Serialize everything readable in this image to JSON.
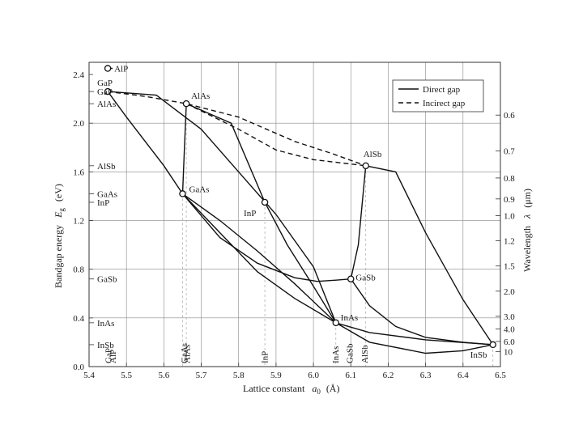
{
  "chart_data": {
    "type": "line",
    "xlabel": "Lattice constant",
    "xlabel_symbol": "a",
    "xlabel_sub": "0",
    "xlabel_unit": "(Å)",
    "ylabel": "Bandgap energy",
    "ylabel_symbol": "E",
    "ylabel_sub": "g",
    "ylabel_unit": "(eV)",
    "y2label": "Wavelength",
    "y2label_symbol": "λ",
    "y2label_unit": "(μm)",
    "xlim": [
      5.4,
      6.5
    ],
    "ylim": [
      0.0,
      2.5
    ],
    "x_ticks": [
      "5.4",
      "5.5",
      "5.6",
      "5.7",
      "5.8",
      "5.9",
      "6.0",
      "6.1",
      "6.2",
      "6.3",
      "6.4",
      "6.5"
    ],
    "y_ticks": [
      "0.0",
      "0.4",
      "0.8",
      "1.2",
      "1.6",
      "2.0",
      "2.4"
    ],
    "wavelength_ticks": [
      "0.6",
      "0.7",
      "0.8",
      "0.9",
      "1.0",
      "1.2",
      "1.5",
      "2.0",
      "3.0",
      "4.0",
      "6.0",
      "10"
    ],
    "legend": {
      "position": "top-right",
      "direct": "Direct gap",
      "indirect": "Incirect gap"
    },
    "compounds": [
      {
        "name": "AlP",
        "a": 5.45,
        "eg": 2.45
      },
      {
        "name": "GaP",
        "a": 5.45,
        "eg": 2.26
      },
      {
        "name": "AlAs",
        "a": 5.66,
        "eg": 2.16
      },
      {
        "name": "AlSb",
        "a": 6.14,
        "eg": 1.65
      },
      {
        "name": "GaAs",
        "a": 5.65,
        "eg": 1.42
      },
      {
        "name": "InP",
        "a": 5.87,
        "eg": 1.35
      },
      {
        "name": "GaSb",
        "a": 6.1,
        "eg": 0.72
      },
      {
        "name": "InAs",
        "a": 6.06,
        "eg": 0.36
      },
      {
        "name": "InSb",
        "a": 6.48,
        "eg": 0.18
      }
    ],
    "left_axis_labels": [
      {
        "name": "GaP",
        "eg": 2.26
      },
      {
        "name": "AlAs",
        "eg": 2.16
      },
      {
        "name": "AlSb",
        "eg": 1.65
      },
      {
        "name": "GaAs",
        "eg": 1.42
      },
      {
        "name": "InP",
        "eg": 1.35
      },
      {
        "name": "GaSb",
        "eg": 0.72
      },
      {
        "name": "InAs",
        "eg": 0.36
      },
      {
        "name": "InSb",
        "eg": 0.18
      }
    ],
    "bottom_axis_labels": [
      {
        "name": "GaP",
        "a": 5.451
      },
      {
        "name": "AlP",
        "a": 5.463
      },
      {
        "name": "GaAs",
        "a": 5.653
      },
      {
        "name": "AlAs",
        "a": 5.661
      },
      {
        "name": "InP",
        "a": 5.869
      },
      {
        "name": "InAs",
        "a": 6.058
      },
      {
        "name": "GaSb",
        "a": 6.096
      },
      {
        "name": "AlSb",
        "a": 6.136
      }
    ],
    "series": [
      {
        "name": "Direct gap",
        "style": "direct",
        "points": [
          [
            5.45,
            2.26
          ],
          [
            5.58,
            2.23
          ],
          [
            5.7,
            1.95
          ],
          [
            5.8,
            1.6
          ],
          [
            5.9,
            1.25
          ],
          [
            6.0,
            0.82
          ],
          [
            6.06,
            0.36
          ]
        ]
      },
      {
        "name": "Direct gap",
        "style": "direct",
        "points": [
          [
            5.45,
            2.26
          ],
          [
            5.5,
            2.05
          ],
          [
            5.6,
            1.65
          ],
          [
            5.65,
            1.42
          ],
          [
            5.75,
            1.1
          ],
          [
            5.85,
            0.78
          ],
          [
            5.95,
            0.56
          ],
          [
            6.06,
            0.36
          ]
        ]
      },
      {
        "name": "Direct gap",
        "style": "direct",
        "points": [
          [
            5.65,
            1.42
          ],
          [
            5.75,
            1.2
          ],
          [
            5.85,
            0.95
          ],
          [
            5.95,
            0.68
          ],
          [
            6.06,
            0.36
          ]
        ]
      },
      {
        "name": "Direct gap",
        "style": "direct",
        "points": [
          [
            5.65,
            1.42
          ],
          [
            5.75,
            1.06
          ],
          [
            5.85,
            0.85
          ],
          [
            5.95,
            0.73
          ],
          [
            6.01,
            0.7
          ],
          [
            6.06,
            0.71
          ],
          [
            6.1,
            0.72
          ]
        ]
      },
      {
        "name": "Direct gap",
        "style": "direct",
        "points": [
          [
            5.87,
            1.35
          ],
          [
            5.93,
            1.0
          ],
          [
            6.0,
            0.66
          ],
          [
            6.06,
            0.36
          ]
        ]
      },
      {
        "name": "Direct gap",
        "style": "direct",
        "points": [
          [
            5.65,
            1.42
          ],
          [
            5.655,
            1.8
          ],
          [
            5.66,
            2.16
          ]
        ]
      },
      {
        "name": "Direct gap",
        "style": "direct",
        "points": [
          [
            6.1,
            0.72
          ],
          [
            6.12,
            1.0
          ],
          [
            6.14,
            1.65
          ]
        ]
      },
      {
        "name": "Direct gap",
        "style": "direct",
        "points": [
          [
            5.66,
            2.16
          ],
          [
            5.78,
            2.0
          ],
          [
            5.87,
            1.35
          ]
        ]
      },
      {
        "name": "Direct gap",
        "style": "direct",
        "points": [
          [
            6.06,
            0.36
          ],
          [
            6.15,
            0.28
          ],
          [
            6.3,
            0.22
          ],
          [
            6.48,
            0.18
          ]
        ]
      },
      {
        "name": "Direct gap",
        "style": "direct",
        "points": [
          [
            6.1,
            0.72
          ],
          [
            6.15,
            0.5
          ],
          [
            6.22,
            0.33
          ],
          [
            6.3,
            0.24
          ],
          [
            6.4,
            0.2
          ],
          [
            6.48,
            0.18
          ]
        ]
      },
      {
        "name": "Direct gap",
        "style": "direct",
        "points": [
          [
            6.06,
            0.36
          ],
          [
            6.15,
            0.2
          ],
          [
            6.3,
            0.11
          ],
          [
            6.4,
            0.13
          ],
          [
            6.48,
            0.18
          ]
        ]
      },
      {
        "name": "Direct gap",
        "style": "direct",
        "points": [
          [
            6.14,
            1.65
          ],
          [
            6.22,
            1.6
          ],
          [
            6.3,
            1.1
          ],
          [
            6.4,
            0.55
          ],
          [
            6.48,
            0.18
          ]
        ]
      },
      {
        "name": "Incirect gap",
        "style": "indirect",
        "points": [
          [
            5.45,
            2.26
          ],
          [
            5.55,
            2.22
          ],
          [
            5.66,
            2.16
          ],
          [
            5.8,
            2.05
          ],
          [
            5.95,
            1.85
          ],
          [
            6.05,
            1.75
          ],
          [
            6.14,
            1.65
          ]
        ]
      },
      {
        "name": "Incirect gap",
        "style": "indirect",
        "points": [
          [
            5.66,
            2.16
          ],
          [
            5.8,
            1.95
          ],
          [
            5.9,
            1.78
          ],
          [
            6.0,
            1.7
          ],
          [
            6.14,
            1.65
          ]
        ]
      },
      {
        "name": "Incirect gap",
        "style": "indirect",
        "points": [
          [
            5.45,
            2.45
          ],
          [
            5.47,
            2.45
          ]
        ]
      }
    ]
  }
}
